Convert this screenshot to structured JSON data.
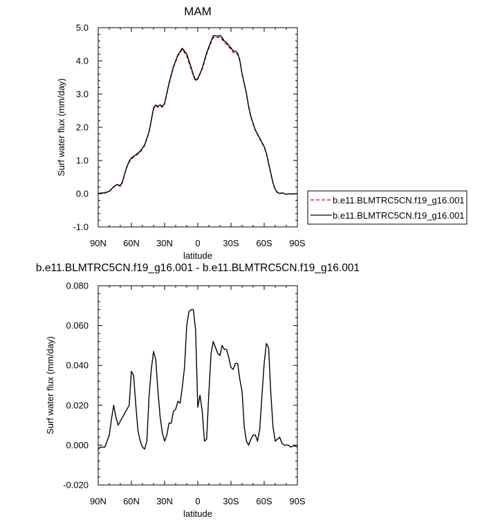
{
  "chart_data": [
    {
      "type": "line",
      "title": "MAM",
      "xlabel": "latitude",
      "ylabel": "Surf water flux (mm/day)",
      "xlim": [
        -90,
        90
      ],
      "ylim": [
        -1.0,
        5.0
      ],
      "yticks": [
        -1.0,
        0.0,
        1.0,
        2.0,
        3.0,
        4.0,
        5.0
      ],
      "ytick_labels": [
        "-1.0",
        "0.0",
        "1.0",
        "2.0",
        "3.0",
        "4.0",
        "5.0"
      ],
      "xticks": [
        -90,
        -60,
        -30,
        0,
        30,
        60,
        90
      ],
      "xtick_labels": [
        "90N",
        "60N",
        "30N",
        "0",
        "30S",
        "60S",
        "90S"
      ],
      "legend_position": "right",
      "series": [
        {
          "name": "b.e11.BLMTRC5CN.f19_g16.001",
          "color": "#cc0000",
          "dash": true,
          "x": [
            -90,
            -84,
            -80,
            -76,
            -74,
            -72,
            -70,
            -68,
            -66,
            -64,
            -62,
            -60,
            -56,
            -52,
            -48,
            -44,
            -42,
            -40,
            -38,
            -36,
            -34,
            -32,
            -30,
            -26,
            -22,
            -18,
            -16,
            -14,
            -12,
            -10,
            -6,
            -4,
            -2,
            0,
            2,
            4,
            8,
            12,
            14,
            16,
            18,
            20,
            22,
            24,
            26,
            28,
            30,
            32,
            34,
            36,
            38,
            40,
            42,
            44,
            46,
            48,
            50,
            52,
            56,
            60,
            62,
            64,
            66,
            68,
            70,
            72,
            74,
            76,
            78,
            80,
            82,
            84,
            88,
            90
          ],
          "y": [
            0.0,
            0.02,
            0.06,
            0.2,
            0.25,
            0.26,
            0.22,
            0.35,
            0.6,
            0.8,
            0.95,
            1.05,
            1.15,
            1.25,
            1.45,
            1.85,
            2.2,
            2.55,
            2.65,
            2.6,
            2.65,
            2.6,
            2.7,
            3.3,
            3.8,
            4.15,
            4.25,
            4.35,
            4.25,
            4.15,
            3.75,
            3.55,
            3.4,
            3.45,
            3.6,
            3.75,
            4.2,
            4.55,
            4.7,
            4.72,
            4.7,
            4.72,
            4.65,
            4.55,
            4.5,
            4.42,
            4.35,
            4.25,
            4.25,
            4.2,
            4.0,
            3.6,
            3.3,
            3.0,
            2.6,
            2.3,
            2.1,
            1.9,
            1.65,
            1.4,
            1.2,
            0.9,
            0.6,
            0.3,
            0.12,
            0.03,
            0.0,
            0.02,
            0.01,
            -0.02,
            0.0,
            -0.01,
            0.0,
            0.0
          ]
        },
        {
          "name": "b.e11.BLMTRC5CN.f19_g16.001",
          "color": "#000000",
          "dash": false,
          "x": [
            -90,
            -84,
            -80,
            -76,
            -74,
            -72,
            -70,
            -68,
            -66,
            -64,
            -62,
            -60,
            -56,
            -52,
            -48,
            -44,
            -42,
            -40,
            -38,
            -36,
            -34,
            -32,
            -30,
            -26,
            -22,
            -18,
            -16,
            -14,
            -12,
            -10,
            -6,
            -4,
            -2,
            0,
            2,
            4,
            8,
            12,
            14,
            16,
            18,
            20,
            22,
            24,
            26,
            28,
            30,
            32,
            34,
            36,
            38,
            40,
            42,
            44,
            46,
            48,
            50,
            52,
            56,
            60,
            62,
            64,
            66,
            68,
            70,
            72,
            74,
            76,
            78,
            80,
            82,
            84,
            88,
            90
          ],
          "y": [
            0.01,
            0.03,
            0.07,
            0.21,
            0.26,
            0.27,
            0.24,
            0.37,
            0.62,
            0.82,
            0.98,
            1.08,
            1.17,
            1.28,
            1.47,
            1.87,
            2.22,
            2.58,
            2.67,
            2.63,
            2.68,
            2.63,
            2.72,
            3.33,
            3.83,
            4.18,
            4.28,
            4.38,
            4.29,
            4.21,
            3.8,
            3.58,
            3.42,
            3.47,
            3.62,
            3.78,
            4.24,
            4.6,
            4.75,
            4.76,
            4.74,
            4.77,
            4.7,
            4.6,
            4.55,
            4.47,
            4.39,
            4.3,
            4.29,
            4.24,
            4.02,
            3.62,
            3.32,
            3.02,
            2.62,
            2.32,
            2.12,
            1.92,
            1.67,
            1.42,
            1.22,
            0.92,
            0.62,
            0.32,
            0.13,
            0.04,
            0.01,
            0.02,
            0.01,
            -0.02,
            0.0,
            -0.01,
            0.0,
            0.0
          ]
        }
      ]
    },
    {
      "type": "line",
      "title": "b.e11.BLMTRC5CN.f19_g16.001 - b.e11.BLMTRC5CN.f19_g16.001",
      "xlabel": "latitude",
      "ylabel": "Surf water flux (mm/day)",
      "xlim": [
        -90,
        90
      ],
      "ylim": [
        -0.02,
        0.08
      ],
      "yticks": [
        -0.02,
        0.0,
        0.02,
        0.04,
        0.06,
        0.08
      ],
      "ytick_labels": [
        "-0.020",
        "0.000",
        "0.020",
        "0.040",
        "0.060",
        "0.080"
      ],
      "xticks": [
        -90,
        -60,
        -30,
        0,
        30,
        60,
        90
      ],
      "xtick_labels": [
        "90N",
        "60N",
        "30N",
        "0",
        "30S",
        "60S",
        "90S"
      ],
      "series": [
        {
          "name": "",
          "color": "#000000",
          "dash": false,
          "x": [
            -90,
            -88,
            -84,
            -80,
            -78,
            -76,
            -74,
            -72,
            -70,
            -66,
            -62,
            -60,
            -58,
            -56,
            -54,
            -52,
            -50,
            -48,
            -46,
            -44,
            -42,
            -40,
            -38,
            -36,
            -34,
            -32,
            -30,
            -28,
            -26,
            -24,
            -22,
            -20,
            -18,
            -16,
            -14,
            -12,
            -10,
            -8,
            -6,
            -4,
            -2,
            0,
            2,
            4,
            6,
            8,
            10,
            12,
            14,
            16,
            18,
            20,
            22,
            24,
            26,
            28,
            30,
            32,
            34,
            36,
            38,
            40,
            42,
            44,
            46,
            48,
            50,
            52,
            54,
            56,
            58,
            60,
            62,
            64,
            66,
            68,
            70,
            72,
            74,
            76,
            78,
            80,
            82,
            84,
            86,
            88,
            90
          ],
          "y": [
            -0.002,
            -0.001,
            -0.001,
            0.005,
            0.013,
            0.02,
            0.014,
            0.01,
            0.012,
            0.016,
            0.02,
            0.037,
            0.035,
            0.02,
            0.007,
            0.002,
            -0.001,
            -0.002,
            0.002,
            0.025,
            0.038,
            0.047,
            0.043,
            0.027,
            0.014,
            0.006,
            0.002,
            0.005,
            0.011,
            0.011,
            0.017,
            0.018,
            0.022,
            0.021,
            0.029,
            0.039,
            0.06,
            0.067,
            0.068,
            0.068,
            0.058,
            0.019,
            0.025,
            0.017,
            0.002,
            0.003,
            0.026,
            0.046,
            0.052,
            0.049,
            0.046,
            0.045,
            0.05,
            0.048,
            0.048,
            0.044,
            0.039,
            0.038,
            0.041,
            0.041,
            0.033,
            0.027,
            0.009,
            0.002,
            0.0,
            0.003,
            0.005,
            0.005,
            0.002,
            0.008,
            0.025,
            0.041,
            0.051,
            0.049,
            0.026,
            0.009,
            0.002,
            0.003,
            0.004,
            0.001,
            0.0,
            0.0,
            0.0,
            -0.001,
            -0.0005,
            -0.0005,
            -0.001
          ]
        }
      ]
    }
  ]
}
